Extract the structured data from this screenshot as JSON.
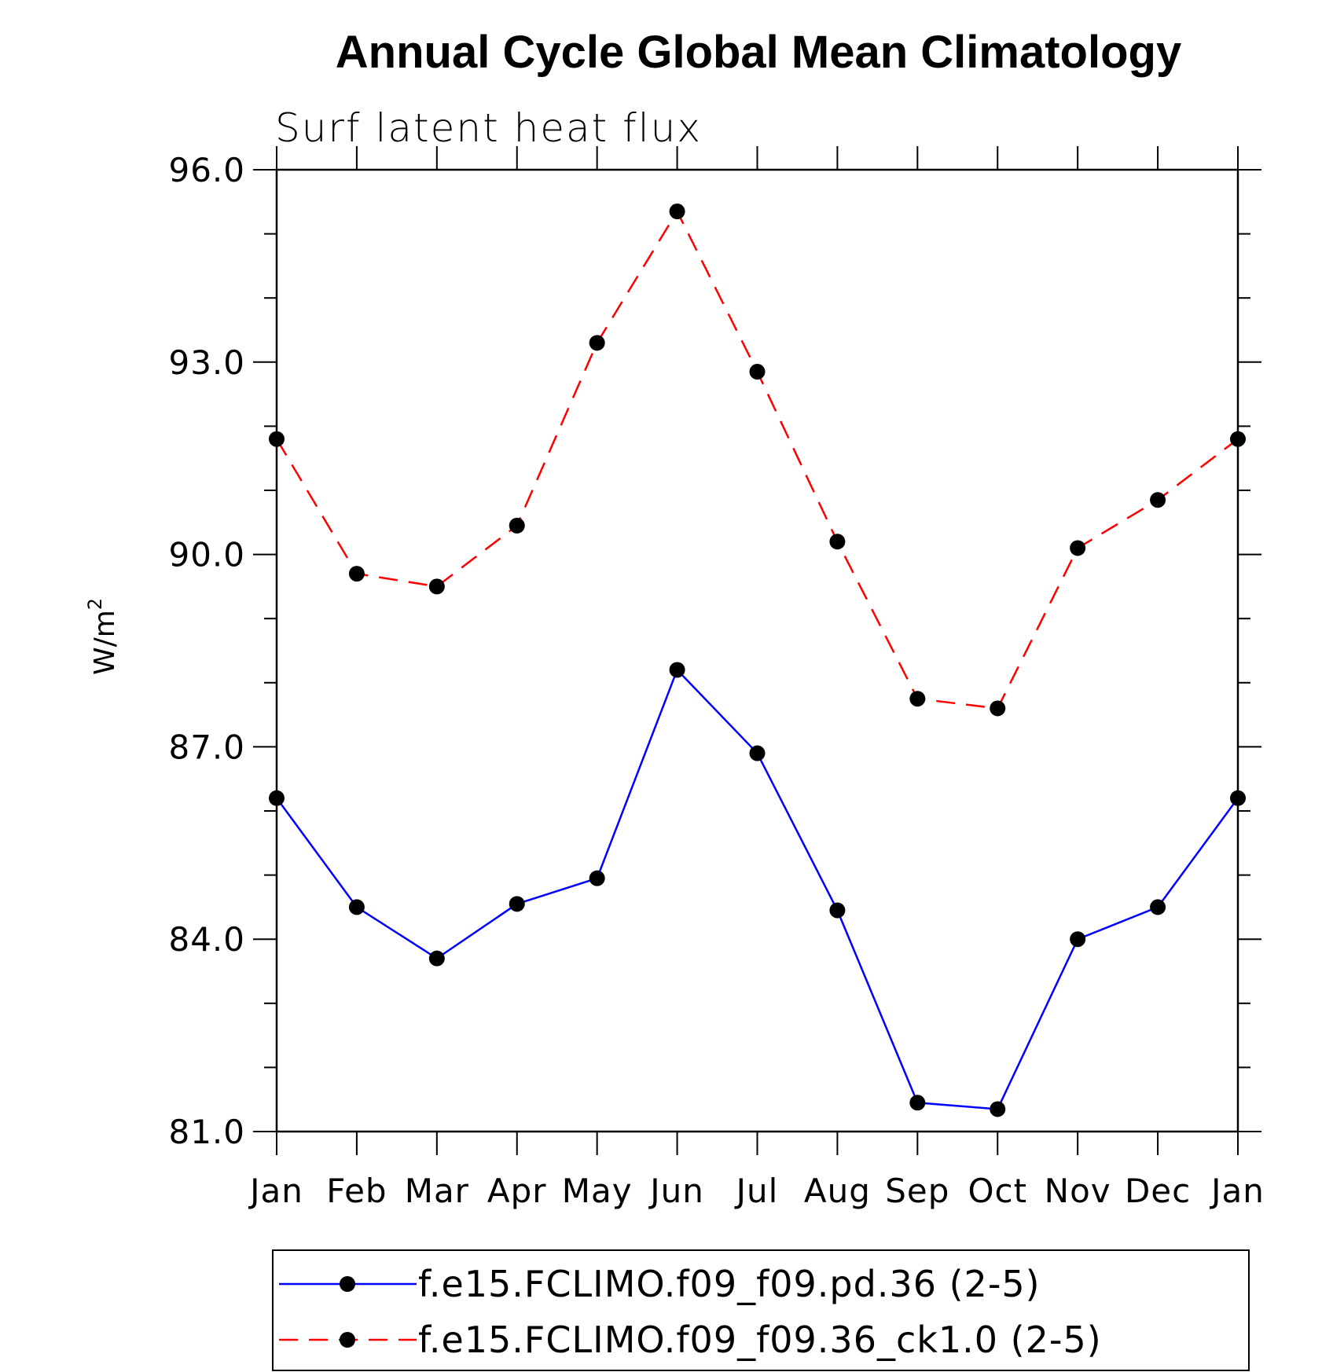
{
  "chart_data": {
    "type": "line",
    "title": "Annual Cycle Global Mean Climatology",
    "subtitle": "Surf latent heat flux",
    "ylabel": "W/m",
    "ylabel_superscript": "2",
    "ylim": [
      81.0,
      96.0
    ],
    "y_ticks": [
      "81.0",
      "84.0",
      "87.0",
      "90.0",
      "93.0",
      "96.0"
    ],
    "categories": [
      "Jan",
      "Feb",
      "Mar",
      "Apr",
      "May",
      "Jun",
      "Jul",
      "Aug",
      "Sep",
      "Oct",
      "Nov",
      "Dec",
      "Jan"
    ],
    "series": [
      {
        "name": "f.e15.FCLIMO.f09_f09.pd.36 (2-5)",
        "color": "#0000ff",
        "dash": "solid",
        "values": [
          86.2,
          84.5,
          83.7,
          84.55,
          84.95,
          88.2,
          86.9,
          84.45,
          81.45,
          81.35,
          84.0,
          84.5,
          86.2
        ]
      },
      {
        "name": "f.e15.FCLIMO.f09_f09.36_ck1.0 (2-5)",
        "color": "#ff0000",
        "dash": "dashed",
        "values": [
          91.8,
          89.7,
          89.5,
          90.45,
          93.3,
          95.35,
          92.85,
          90.2,
          87.75,
          87.6,
          90.1,
          90.85,
          91.8
        ]
      }
    ],
    "grid": false,
    "legend_position": "bottom"
  }
}
